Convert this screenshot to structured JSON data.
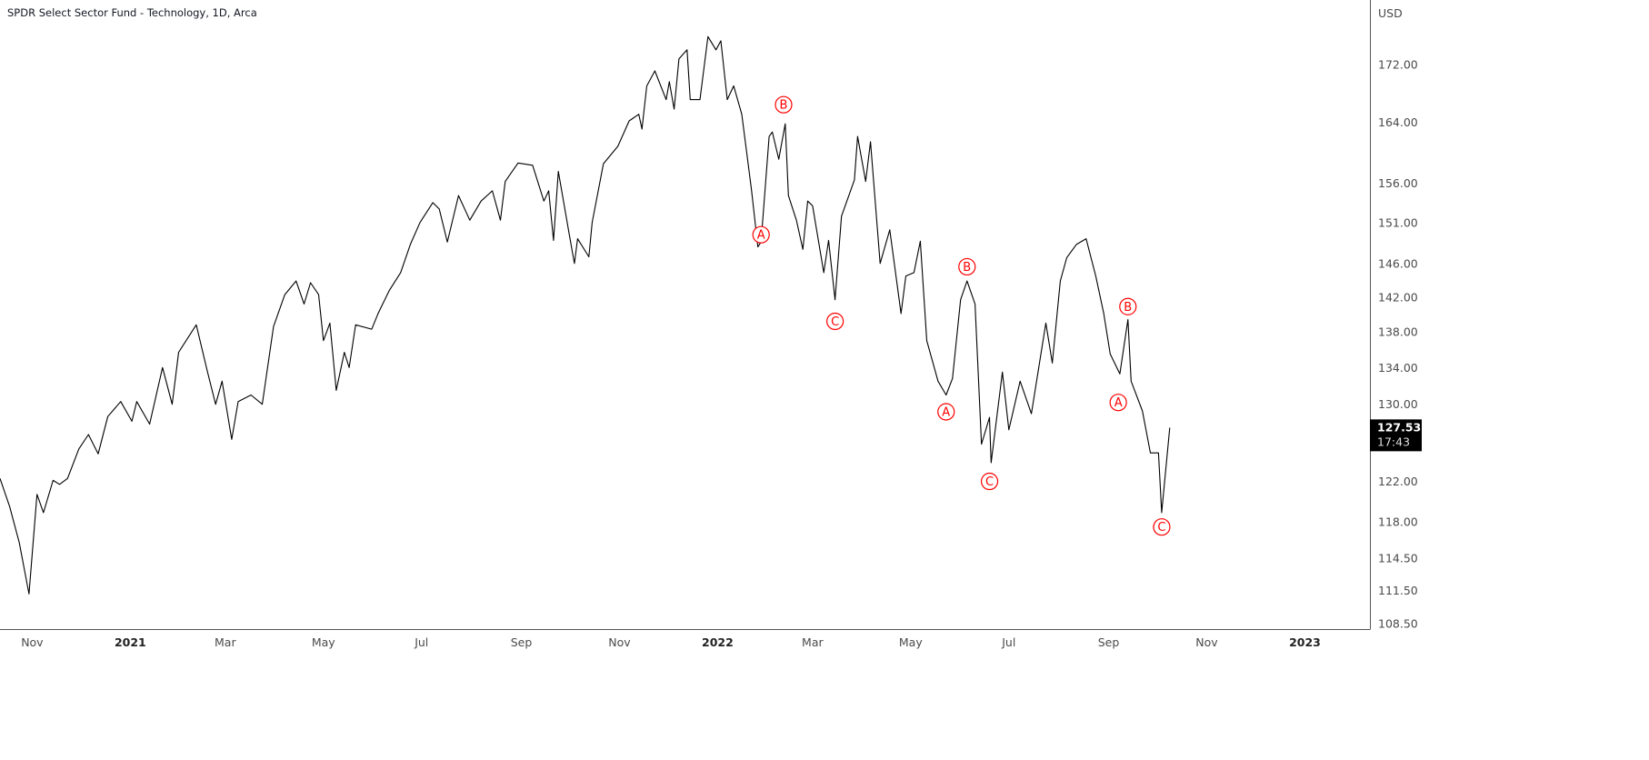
{
  "chart_data": {
    "type": "line",
    "title": "SPDR Select Sector Fund - Technology, 1D, Arca",
    "currency": "USD",
    "y_scale": "log",
    "ylim": [
      107.5,
      180
    ],
    "grid": false,
    "line_color": "#000000",
    "annotation_color": "#ff0000",
    "y_ticks": [
      "172.00",
      "164.00",
      "156.00",
      "151.00",
      "146.00",
      "142.00",
      "138.00",
      "134.00",
      "130.00",
      "122.00",
      "118.00",
      "114.50",
      "111.50",
      "108.50"
    ],
    "x_ticks": [
      {
        "label": "Nov",
        "date": "2020-11-01"
      },
      {
        "label": "2021",
        "date": "2021-01-01",
        "year": true
      },
      {
        "label": "Mar",
        "date": "2021-03-01"
      },
      {
        "label": "May",
        "date": "2021-05-01"
      },
      {
        "label": "Jul",
        "date": "2021-07-01"
      },
      {
        "label": "Sep",
        "date": "2021-09-01"
      },
      {
        "label": "Nov",
        "date": "2021-11-01"
      },
      {
        "label": "2022",
        "date": "2022-01-01",
        "year": true
      },
      {
        "label": "Mar",
        "date": "2022-03-01"
      },
      {
        "label": "May",
        "date": "2022-05-01"
      },
      {
        "label": "Jul",
        "date": "2022-07-01"
      },
      {
        "label": "Sep",
        "date": "2022-09-01"
      },
      {
        "label": "Nov",
        "date": "2022-11-01"
      },
      {
        "label": "2023",
        "date": "2023-01-01",
        "year": true
      }
    ],
    "last_price": {
      "value": "127.53",
      "countdown": "17:43"
    },
    "series": [
      {
        "dates": [
          "2020-10-12",
          "2020-10-18",
          "2020-10-24",
          "2020-10-30",
          "2020-11-04",
          "2020-11-08",
          "2020-11-14",
          "2020-11-18",
          "2020-11-23",
          "2020-11-30",
          "2020-12-06",
          "2020-12-12",
          "2020-12-18",
          "2020-12-26",
          "2021-01-02",
          "2021-01-05",
          "2021-01-13",
          "2021-01-21",
          "2021-01-27",
          "2021-01-31",
          "2021-02-11",
          "2021-02-18",
          "2021-02-23",
          "2021-02-27",
          "2021-03-05",
          "2021-03-09",
          "2021-03-17",
          "2021-03-24",
          "2021-03-31",
          "2021-04-07",
          "2021-04-14",
          "2021-04-19",
          "2021-04-23",
          "2021-04-28",
          "2021-05-01",
          "2021-05-05",
          "2021-05-09",
          "2021-05-14",
          "2021-05-17",
          "2021-05-21",
          "2021-05-31",
          "2021-06-04",
          "2021-06-11",
          "2021-06-18",
          "2021-06-24",
          "2021-06-30",
          "2021-07-08",
          "2021-07-12",
          "2021-07-17",
          "2021-07-24",
          "2021-07-31",
          "2021-08-07",
          "2021-08-14",
          "2021-08-19",
          "2021-08-22",
          "2021-08-30",
          "2021-09-08",
          "2021-09-15",
          "2021-09-18",
          "2021-09-21",
          "2021-09-24",
          "2021-10-01",
          "2021-10-04",
          "2021-10-06",
          "2021-10-13",
          "2021-10-15",
          "2021-10-22",
          "2021-10-31",
          "2021-11-07",
          "2021-11-13",
          "2021-11-15",
          "2021-11-18",
          "2021-11-23",
          "2021-11-30",
          "2021-12-02",
          "2021-12-05",
          "2021-12-08",
          "2021-12-13",
          "2021-12-15",
          "2021-12-21",
          "2021-12-26",
          "2021-12-31",
          "2022-01-03",
          "2022-01-07",
          "2022-01-11",
          "2022-01-16",
          "2022-01-22",
          "2022-01-26",
          "2022-01-28",
          "2022-02-02",
          "2022-02-04",
          "2022-02-08",
          "2022-02-12",
          "2022-02-14",
          "2022-02-19",
          "2022-02-23",
          "2022-02-26",
          "2022-03-01",
          "2022-03-08",
          "2022-03-11",
          "2022-03-15",
          "2022-03-19",
          "2022-03-27",
          "2022-03-29",
          "2022-04-03",
          "2022-04-06",
          "2022-04-12",
          "2022-04-18",
          "2022-04-25",
          "2022-04-28",
          "2022-05-03",
          "2022-05-07",
          "2022-05-11",
          "2022-05-18",
          "2022-05-23",
          "2022-05-27",
          "2022-06-01",
          "2022-06-05",
          "2022-06-10",
          "2022-06-14",
          "2022-06-19",
          "2022-06-20",
          "2022-06-27",
          "2022-07-01",
          "2022-07-08",
          "2022-07-15",
          "2022-07-24",
          "2022-07-28",
          "2022-08-02",
          "2022-08-06",
          "2022-08-12",
          "2022-08-18",
          "2022-08-24",
          "2022-08-29",
          "2022-09-02",
          "2022-09-08",
          "2022-09-13",
          "2022-09-15",
          "2022-09-22",
          "2022-09-27",
          "2022-10-02",
          "2022-10-04",
          "2022-10-09"
        ],
        "values": [
          122.3,
          119.5,
          116.0,
          111.2,
          120.7,
          118.9,
          122.1,
          121.7,
          122.3,
          125.3,
          126.8,
          124.8,
          128.7,
          130.3,
          128.2,
          130.3,
          127.9,
          134.0,
          130.0,
          135.7,
          138.8,
          133.5,
          130.0,
          132.5,
          126.3,
          130.3,
          131.0,
          130.0,
          138.6,
          142.3,
          143.9,
          141.2,
          143.7,
          142.3,
          137.0,
          139.0,
          131.5,
          135.7,
          134.0,
          138.8,
          138.3,
          140.1,
          142.8,
          144.9,
          148.3,
          151.0,
          153.5,
          152.7,
          148.6,
          154.4,
          151.3,
          153.7,
          155.0,
          151.3,
          156.2,
          158.6,
          158.3,
          153.7,
          155.0,
          148.8,
          157.5,
          149.3,
          146.0,
          149.0,
          146.8,
          151.0,
          158.5,
          160.8,
          164.2,
          165.1,
          163.1,
          169.0,
          171.1,
          167.1,
          169.6,
          165.8,
          172.8,
          174.1,
          167.1,
          167.1,
          176.0,
          174.1,
          175.4,
          167.1,
          169.0,
          165.1,
          155.2,
          148.0,
          148.6,
          162.1,
          162.7,
          159.1,
          163.8,
          154.4,
          151.3,
          147.7,
          153.7,
          153.1,
          144.9,
          148.8,
          141.7,
          151.8,
          156.4,
          162.1,
          156.2,
          161.4,
          146.0,
          150.1,
          140.1,
          144.5,
          144.9,
          148.7,
          137.0,
          132.5,
          131.0,
          132.8,
          141.7,
          143.9,
          141.2,
          125.8,
          128.6,
          123.9,
          133.5,
          127.3,
          132.5,
          129.0,
          139.0,
          134.5,
          143.9,
          146.7,
          148.3,
          149.0,
          144.5,
          140.1,
          135.5,
          133.3,
          139.4,
          132.5,
          129.3,
          124.9,
          124.9,
          118.9,
          127.53
        ]
      }
    ],
    "annotations": [
      {
        "label": "A",
        "date": "2022-01-28",
        "price": 149.5
      },
      {
        "label": "B",
        "date": "2022-02-11",
        "price": 166.4
      },
      {
        "label": "C",
        "date": "2022-03-15",
        "price": 139.2
      },
      {
        "label": "A",
        "date": "2022-05-23",
        "price": 129.2
      },
      {
        "label": "B",
        "date": "2022-06-05",
        "price": 145.6
      },
      {
        "label": "C",
        "date": "2022-06-19",
        "price": 122.0
      },
      {
        "label": "A",
        "date": "2022-09-07",
        "price": 130.2
      },
      {
        "label": "B",
        "date": "2022-09-13",
        "price": 140.9
      },
      {
        "label": "C",
        "date": "2022-10-04",
        "price": 117.5
      }
    ]
  }
}
